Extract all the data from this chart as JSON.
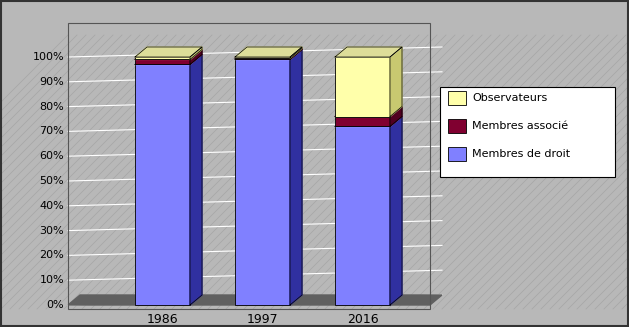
{
  "categories": [
    "1986",
    "1997",
    "2016"
  ],
  "membres_de_droit": [
    97,
    99,
    72
  ],
  "membres_associe": [
    2,
    0.5,
    4
  ],
  "observateurs": [
    1,
    0.5,
    24
  ],
  "color_front_md": "#8080ff",
  "color_side_md": "#3030a0",
  "color_top_md": "#b0b0ff",
  "color_front_ma": "#800030",
  "color_side_ma": "#500020",
  "color_top_ma": "#aa4060",
  "color_front_ob": "#ffffaa",
  "color_side_ob": "#c8c870",
  "color_top_ob": "#dddd99",
  "color_floor": "#808080",
  "color_bg": "#b8b8b8",
  "color_hatch": "#a8a8a8",
  "color_hline": "#c8c8c8",
  "legend_labels": [
    "Observateurs",
    "Membres associé",
    "Membres de droit"
  ],
  "legend_colors_front": [
    "#ffffaa",
    "#800030",
    "#8080ff"
  ],
  "legend_border": "#000000",
  "yticks": [
    0,
    10,
    20,
    30,
    40,
    50,
    60,
    70,
    80,
    90,
    100
  ],
  "yticklabels": [
    "0%",
    "10%",
    "20%",
    "30%",
    "40%",
    "50%",
    "60%",
    "70%",
    "80%",
    "90%",
    "100%"
  ],
  "fig_width": 6.29,
  "fig_height": 3.27,
  "dpi": 100
}
